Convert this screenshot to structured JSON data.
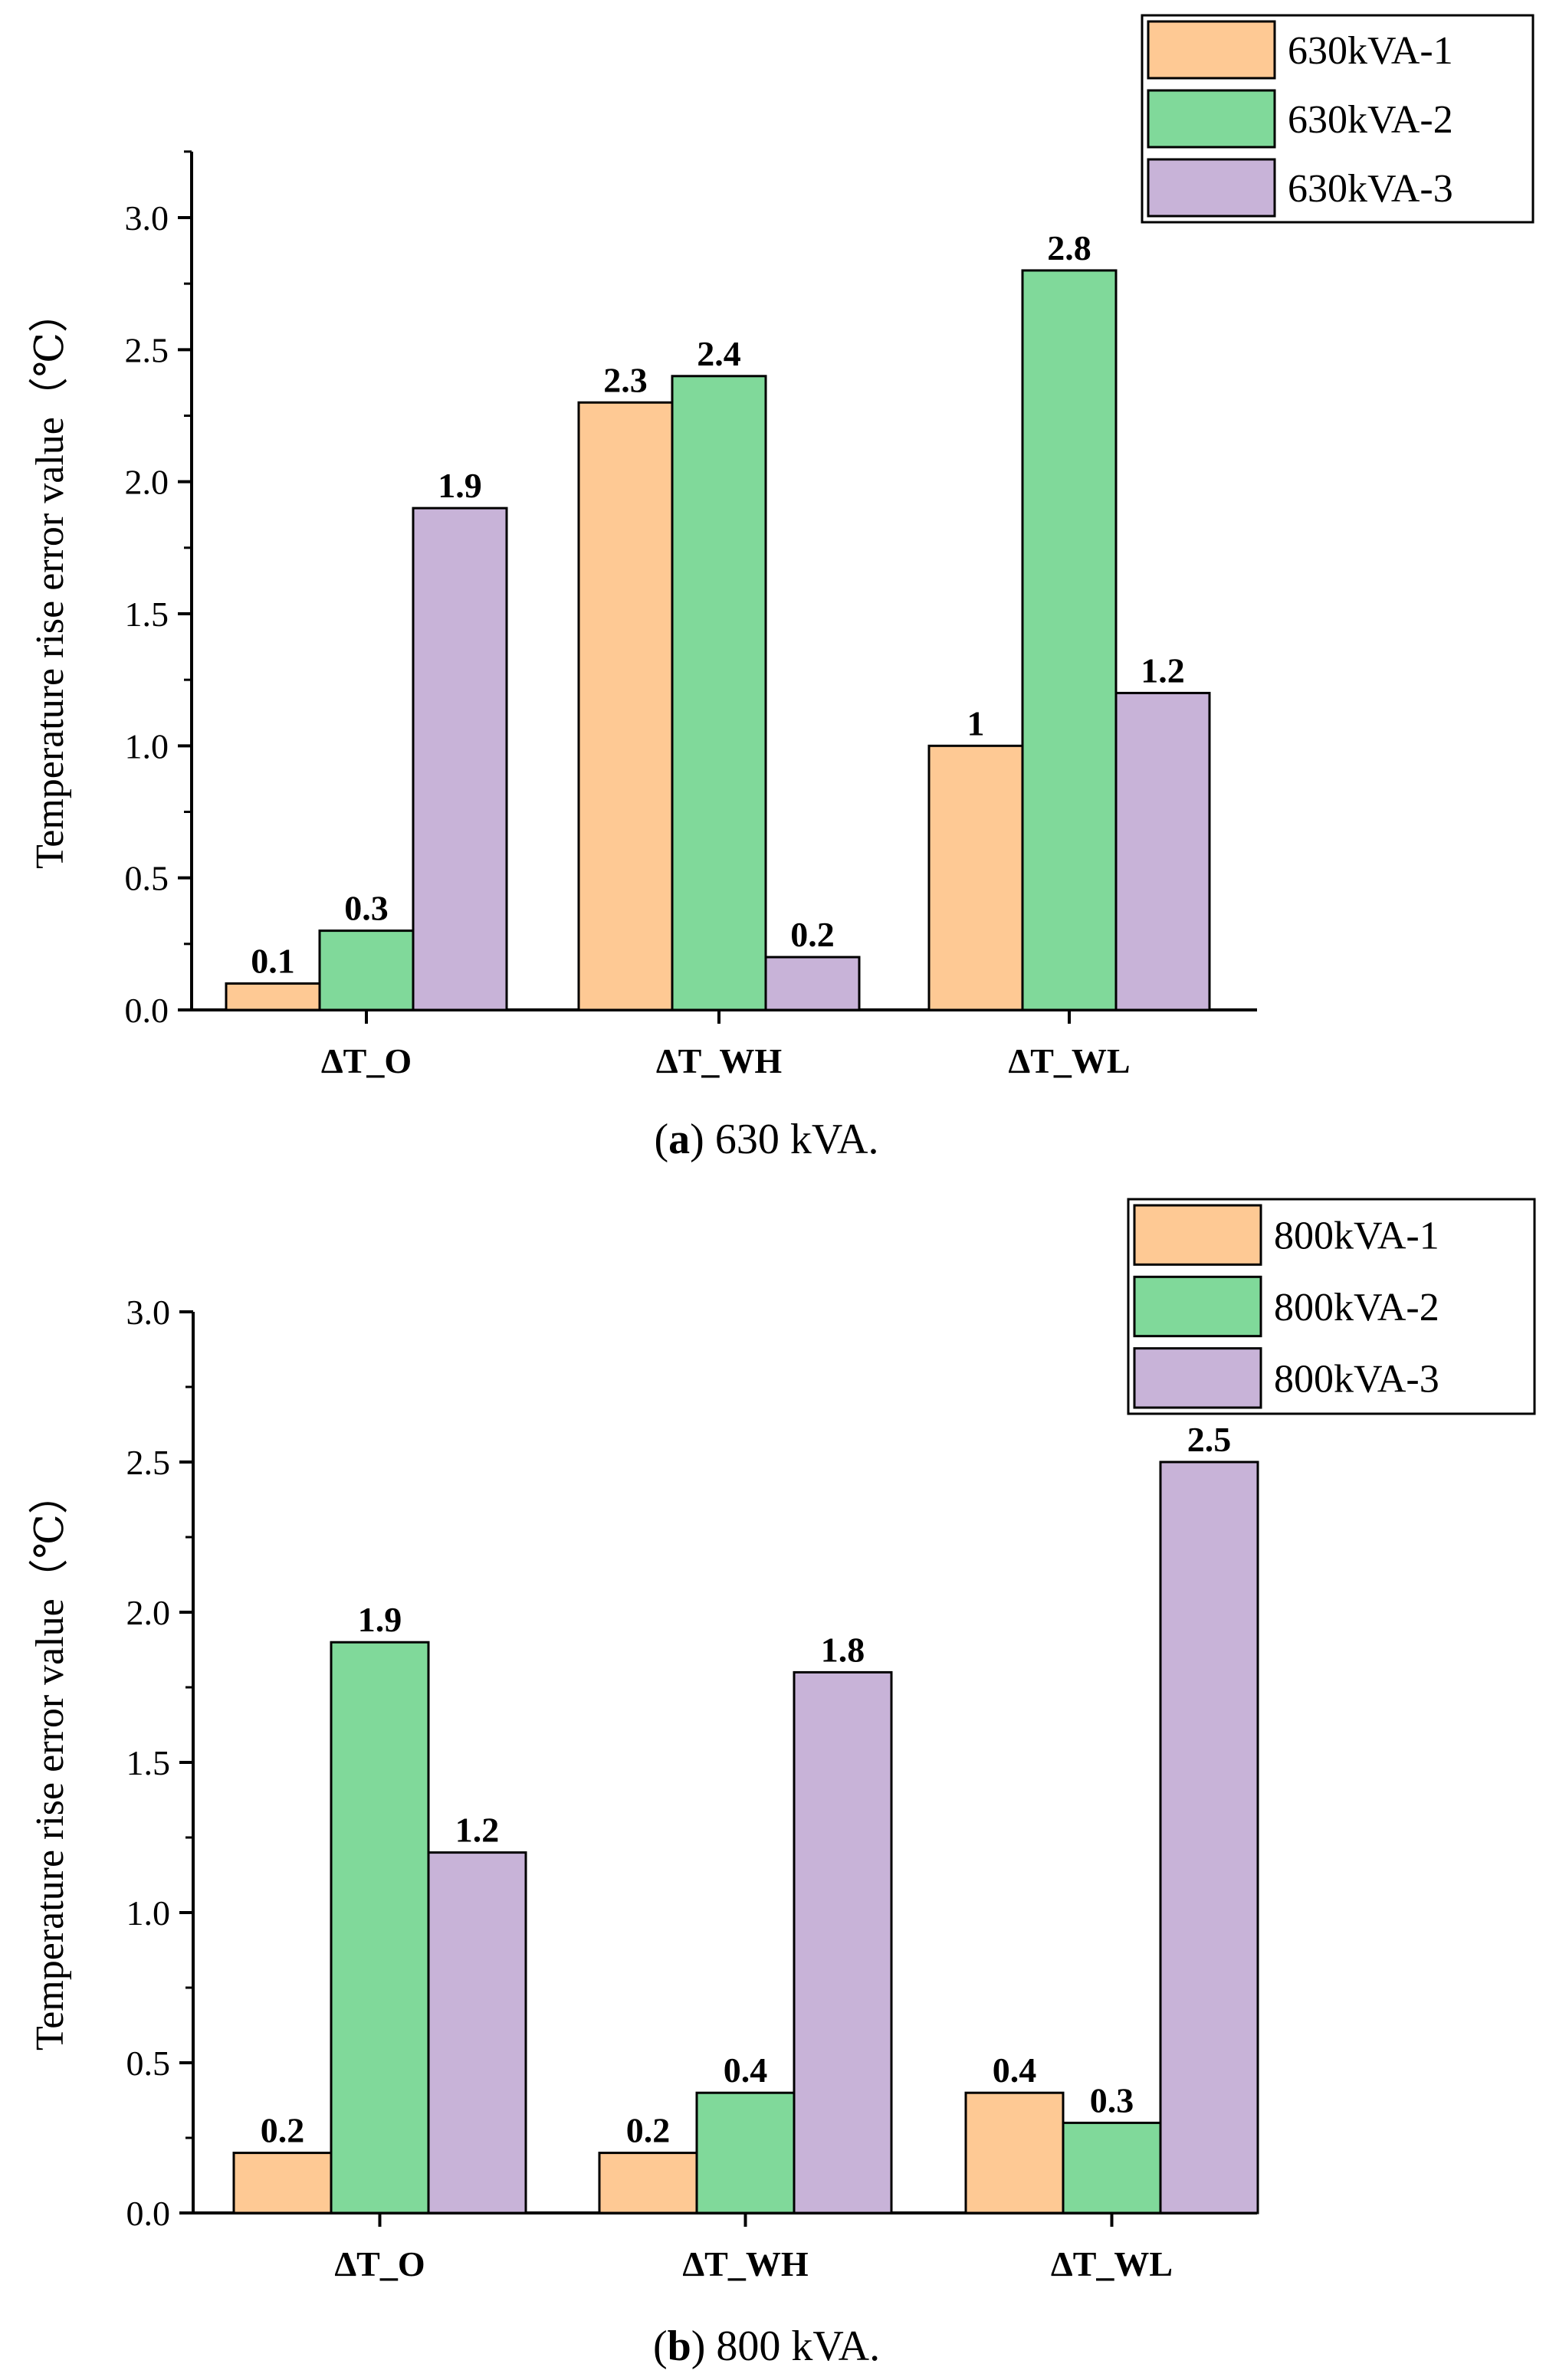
{
  "chart_data": [
    {
      "type": "bar",
      "caption_label": "a",
      "caption_text": "630 kVA.",
      "categories": [
        "ΔT_O",
        "ΔT_WH",
        "ΔT_WL"
      ],
      "ylabel": "Temperature rise error value（℃）",
      "ylim": [
        0,
        3.25
      ],
      "yticks": [
        "0.0",
        "0.5",
        "1.0",
        "1.5",
        "2.0",
        "2.5",
        "3.0"
      ],
      "series": [
        {
          "name": "630kVA-1",
          "color": "#FEC994",
          "values": [
            0.1,
            2.3,
            1
          ],
          "labels": [
            "0.1",
            "2.3",
            "1"
          ]
        },
        {
          "name": "630kVA-2",
          "color": "#80D99A",
          "values": [
            0.3,
            2.4,
            2.8
          ],
          "labels": [
            "0.3",
            "2.4",
            "2.8"
          ]
        },
        {
          "name": "630kVA-3",
          "color": "#C8B3D8",
          "values": [
            1.9,
            0.2,
            1.2
          ],
          "labels": [
            "1.9",
            "0.2",
            "1.2"
          ]
        }
      ],
      "legend": "top-right"
    },
    {
      "type": "bar",
      "caption_label": "b",
      "caption_text": "800 kVA.",
      "categories": [
        "ΔT_O",
        "ΔT_WH",
        "ΔT_WL"
      ],
      "ylabel": "Temperature rise error value（℃）",
      "ylim": [
        0,
        3.0
      ],
      "yticks": [
        "0.0",
        "0.5",
        "1.0",
        "1.5",
        "2.0",
        "2.5",
        "3.0"
      ],
      "series": [
        {
          "name": "800kVA-1",
          "color": "#FEC994",
          "values": [
            0.2,
            0.2,
            0.4
          ],
          "labels": [
            "0.2",
            "0.2",
            "0.4"
          ]
        },
        {
          "name": "800kVA-2",
          "color": "#80D99A",
          "values": [
            1.9,
            0.4,
            0.3
          ],
          "labels": [
            "1.9",
            "0.4",
            "0.3"
          ]
        },
        {
          "name": "800kVA-3",
          "color": "#C8B3D8",
          "values": [
            1.2,
            1.8,
            2.5
          ],
          "labels": [
            "1.2",
            "1.8",
            "2.5"
          ]
        }
      ],
      "legend": "top-right"
    }
  ]
}
